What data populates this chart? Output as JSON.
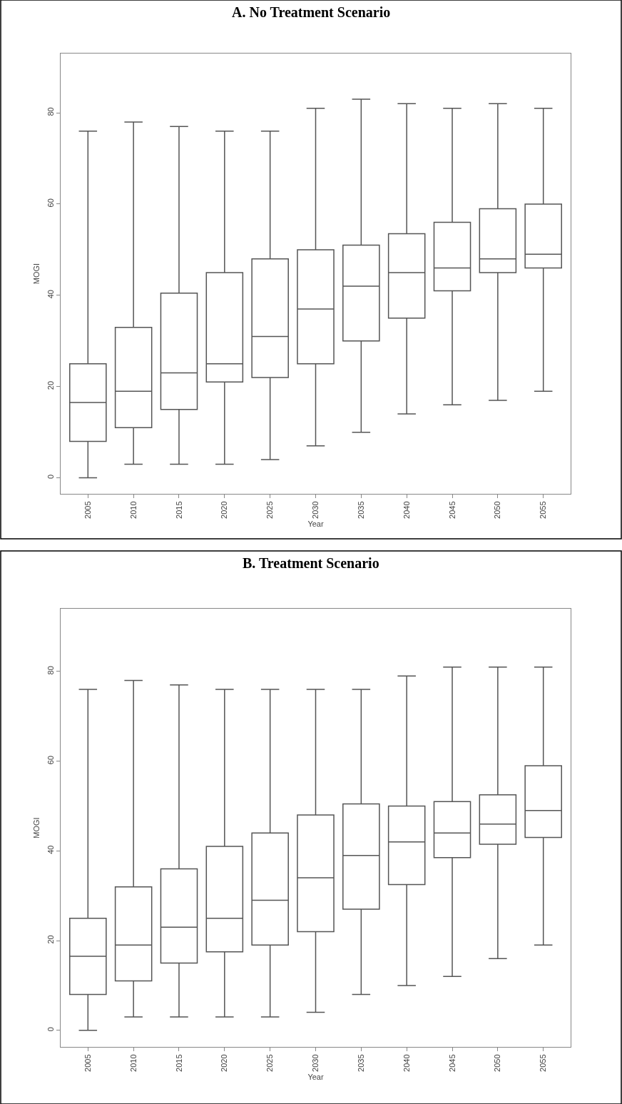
{
  "chart_data": [
    {
      "type": "box",
      "title": "A. No Treatment Scenario",
      "xlabel": "Year",
      "ylabel": "MOGI",
      "categories": [
        "2005",
        "2010",
        "2015",
        "2020",
        "2025",
        "2030",
        "2035",
        "2040",
        "2045",
        "2050",
        "2055"
      ],
      "ylim": [
        -3.5,
        93
      ],
      "yticks": [
        0,
        20,
        40,
        60,
        80
      ],
      "series": [
        {
          "color": "#555555",
          "boxes": [
            {
              "low": 0,
              "q1": 8,
              "median": 16.5,
              "q3": 25,
              "high": 76
            },
            {
              "low": 3,
              "q1": 11,
              "median": 19,
              "q3": 33,
              "high": 78
            },
            {
              "low": 3,
              "q1": 15,
              "median": 23,
              "q3": 40.5,
              "high": 77
            },
            {
              "low": 3,
              "q1": 21,
              "median": 25,
              "q3": 45,
              "high": 76
            },
            {
              "low": 4,
              "q1": 22,
              "median": 31,
              "q3": 48,
              "high": 76
            },
            {
              "low": 7,
              "q1": 25,
              "median": 37,
              "q3": 50,
              "high": 81
            },
            {
              "low": 10,
              "q1": 30,
              "median": 42,
              "q3": 51,
              "high": 83
            },
            {
              "low": 14,
              "q1": 35,
              "median": 45,
              "q3": 53.5,
              "high": 82
            },
            {
              "low": 16,
              "q1": 41,
              "median": 46,
              "q3": 56,
              "high": 81
            },
            {
              "low": 17,
              "q1": 45,
              "median": 48,
              "q3": 59,
              "high": 82
            },
            {
              "low": 19,
              "q1": 46,
              "median": 49,
              "q3": 60,
              "high": 81
            }
          ]
        }
      ]
    },
    {
      "type": "box",
      "title": "B. Treatment Scenario",
      "xlabel": "Year",
      "ylabel": "MOGI",
      "categories": [
        "2005",
        "2010",
        "2015",
        "2020",
        "2025",
        "2030",
        "2035",
        "2040",
        "2045",
        "2050",
        "2055"
      ],
      "ylim": [
        -3.7,
        94
      ],
      "yticks": [
        0,
        20,
        40,
        60,
        80
      ],
      "series": [
        {
          "color": "#555555",
          "boxes": [
            {
              "low": 0,
              "q1": 8,
              "median": 16.5,
              "q3": 25,
              "high": 76
            },
            {
              "low": 3,
              "q1": 11,
              "median": 19,
              "q3": 32,
              "high": 78
            },
            {
              "low": 3,
              "q1": 15,
              "median": 23,
              "q3": 36,
              "high": 77
            },
            {
              "low": 3,
              "q1": 17.5,
              "median": 25,
              "q3": 41,
              "high": 76
            },
            {
              "low": 3,
              "q1": 19,
              "median": 29,
              "q3": 44,
              "high": 76
            },
            {
              "low": 4,
              "q1": 22,
              "median": 34,
              "q3": 48,
              "high": 76
            },
            {
              "low": 8,
              "q1": 27,
              "median": 39,
              "q3": 50.5,
              "high": 76
            },
            {
              "low": 10,
              "q1": 32.5,
              "median": 42,
              "q3": 50,
              "high": 79
            },
            {
              "low": 12,
              "q1": 38.5,
              "median": 44,
              "q3": 51,
              "high": 81
            },
            {
              "low": 16,
              "q1": 41.5,
              "median": 46,
              "q3": 52.5,
              "high": 81
            },
            {
              "low": 19,
              "q1": 43,
              "median": 49,
              "q3": 59,
              "high": 81
            }
          ]
        }
      ]
    }
  ]
}
